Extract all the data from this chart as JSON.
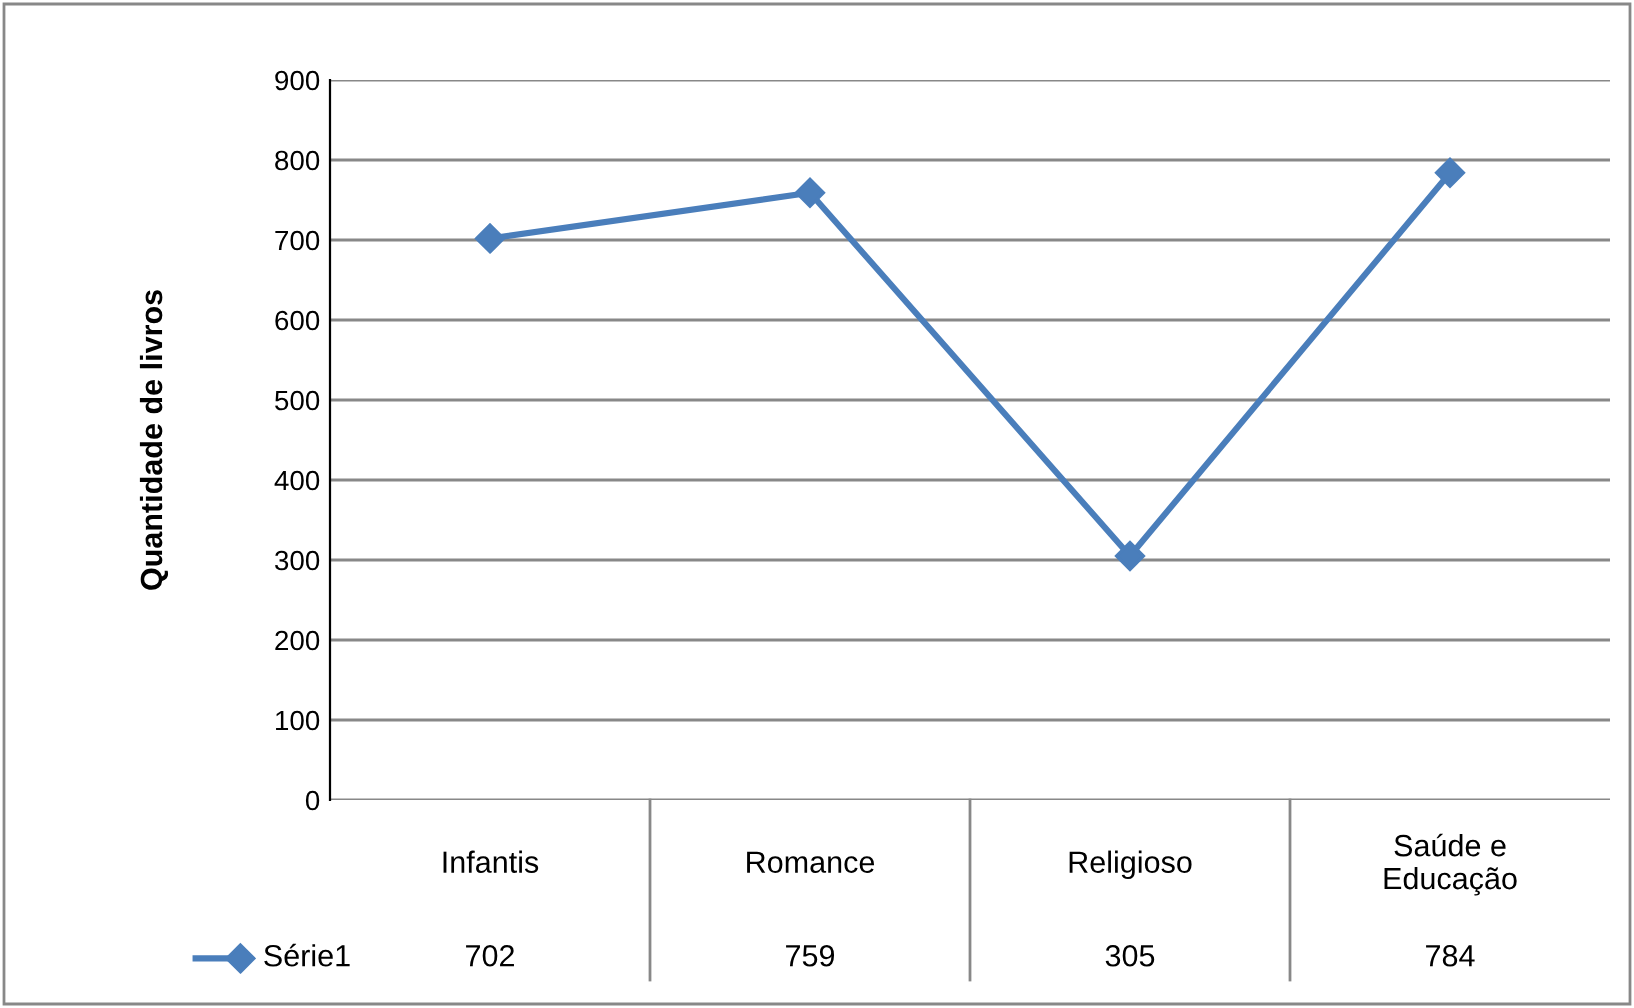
{
  "chart_data": {
    "type": "line",
    "ylabel": "Quantidade de livros",
    "categories": [
      "Infantis",
      "Romance",
      "Religioso",
      "Saúde e\nEducação"
    ],
    "series": [
      {
        "name": "Série1",
        "color": "#4a7ebb",
        "values": [
          702,
          759,
          305,
          784
        ]
      }
    ],
    "ylim": [
      0,
      900
    ],
    "yticks": [
      0,
      100,
      200,
      300,
      400,
      500,
      600,
      700,
      800,
      900
    ],
    "grid": "y",
    "marker": "diamond",
    "line_style": "solid",
    "data_labels": true,
    "legend": "bottom"
  }
}
